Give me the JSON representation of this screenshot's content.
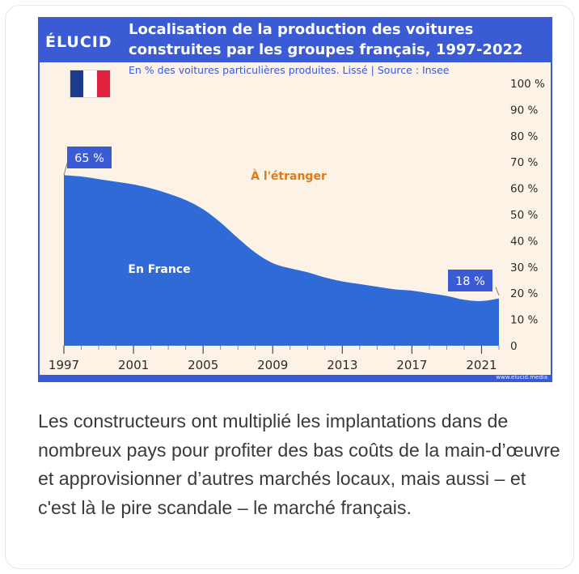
{
  "figure": {
    "logo": "ÉLUCID",
    "title_line1": "Localisation de la production des voitures",
    "title_line2": "construites par les groupes français, 1997-2022",
    "subtitle": "En % des voitures particulières produites. Lissé  |  Source : Insee",
    "url": "www.elucid.media",
    "flag_colors": [
      "#1f3b8f",
      "#ffffff",
      "#e1213c"
    ],
    "colors": {
      "brand": "#3a5bd4",
      "france_area": "#2f6ad6",
      "abroad_area": "#fdf2e6",
      "abroad_label": "#e07a16"
    }
  },
  "chart_data": {
    "type": "area",
    "title": "Localisation de la production des voitures construites par les groupes français, 1997-2022",
    "subtitle": "En % des voitures particulières produites. Lissé | Source : Insee",
    "x": [
      1997,
      1998,
      1999,
      2000,
      2001,
      2002,
      2003,
      2004,
      2005,
      2006,
      2007,
      2008,
      2009,
      2010,
      2011,
      2012,
      2013,
      2014,
      2015,
      2016,
      2017,
      2018,
      2019,
      2020,
      2021,
      2022
    ],
    "series": [
      {
        "name": "En France",
        "values": [
          65,
          64.5,
          63.5,
          62.5,
          61.5,
          60,
          58,
          55.5,
          52,
          47,
          41,
          35.5,
          31.5,
          29.5,
          28,
          26,
          24.5,
          23.5,
          22.5,
          21.5,
          21,
          20,
          19,
          17.5,
          17,
          18
        ]
      },
      {
        "name": "À l'étranger",
        "values": [
          35,
          35.5,
          36.5,
          37.5,
          38.5,
          40,
          42,
          44.5,
          48,
          53,
          59,
          64.5,
          68.5,
          70.5,
          72,
          74,
          75.5,
          76.5,
          77.5,
          78.5,
          79,
          80,
          81,
          82.5,
          83,
          82
        ]
      }
    ],
    "annotations": [
      {
        "text": "65 %",
        "x": 1997,
        "y": 65
      },
      {
        "text": "18 %",
        "x": 2022,
        "y": 18
      }
    ],
    "xticks": [
      "1997",
      "2001",
      "2005",
      "2009",
      "2013",
      "2017",
      "2021"
    ],
    "xtick_values": [
      1997,
      2001,
      2005,
      2009,
      2013,
      2017,
      2021
    ],
    "yticks": [
      "0",
      "10 %",
      "20 %",
      "30 %",
      "40 %",
      "50 %",
      "60 %",
      "70 %",
      "80 %",
      "90 %",
      "100 %"
    ],
    "ytick_values": [
      0,
      10,
      20,
      30,
      40,
      50,
      60,
      70,
      80,
      90,
      100
    ],
    "xlim": [
      1997,
      2022
    ],
    "ylim": [
      0,
      100
    ],
    "axis_side": "right",
    "grid": false
  },
  "caption": "Les constructeurs ont multiplié les implantations dans de nombreux pays pour profiter des bas coûts de la main-d’œuvre et approvisionner d’autres marchés locaux, mais aussi – et c'est là le pire scandale – le marché français."
}
